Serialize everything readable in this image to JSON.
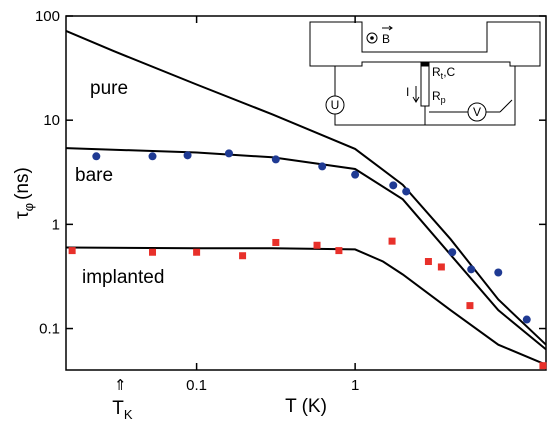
{
  "chart_data": {
    "type": "line",
    "x_label": "T (K)",
    "y_label": {
      "symbol": "τ",
      "subscript": "φ",
      "unit": "(ns)"
    },
    "xscale": "log",
    "yscale": "log",
    "xlim": [
      0.015,
      16
    ],
    "ylim": [
      0.04,
      100
    ],
    "xticks": [
      0.1,
      1
    ],
    "yticks": [
      0.1,
      1,
      10,
      100
    ],
    "marker_annotation": {
      "arrow": "⇑",
      "text": "T",
      "subscript": "K",
      "x": 0.033
    },
    "series": [
      {
        "name": "pure",
        "color": "#000000",
        "style": "line",
        "x": [
          0.015,
          0.03,
          0.1,
          0.3,
          1,
          2,
          4,
          8,
          16
        ],
        "values": [
          72,
          46,
          22,
          11.4,
          5.3,
          2.4,
          0.72,
          0.19,
          0.07
        ]
      },
      {
        "name": "bare",
        "color": "#000000",
        "style": "line",
        "x": [
          0.015,
          0.1,
          0.3,
          1,
          2,
          4,
          8,
          16
        ],
        "values": [
          5.4,
          4.9,
          4.4,
          3.4,
          1.74,
          0.51,
          0.15,
          0.063
        ]
      },
      {
        "name": "implanted",
        "color": "#000000",
        "style": "line",
        "x": [
          0.015,
          0.1,
          0.3,
          1,
          1.5,
          2,
          4,
          8,
          16
        ],
        "values": [
          0.6,
          0.59,
          0.59,
          0.575,
          0.44,
          0.33,
          0.15,
          0.07,
          0.045
        ]
      },
      {
        "color": "#1f3a93",
        "style": "circle",
        "x": [
          0.0233,
          0.0527,
          0.0877,
          0.16,
          0.316,
          0.62,
          1.0,
          1.74,
          2.1,
          4.1,
          5.4,
          8,
          12.1
        ],
        "values": [
          4.5,
          4.5,
          4.6,
          4.8,
          4.2,
          3.6,
          3.0,
          2.37,
          2.07,
          0.54,
          0.37,
          0.345,
          0.122
        ]
      },
      {
        "color": "#e8302a",
        "style": "square",
        "x": [
          0.0164,
          0.0527,
          0.1,
          0.195,
          0.316,
          0.575,
          0.79,
          1.71,
          2.9,
          3.5,
          5.3,
          15.3
        ],
        "values": [
          0.56,
          0.54,
          0.54,
          0.5,
          0.67,
          0.63,
          0.56,
          0.69,
          0.44,
          0.39,
          0.166,
          0.044
        ]
      }
    ],
    "inset": {
      "field": "B",
      "rt": "R",
      "rt_sub": "t",
      "rt_c": ",C",
      "current": "I",
      "rp": "R",
      "rp_sub": "p",
      "u": "U",
      "v": "V"
    }
  }
}
